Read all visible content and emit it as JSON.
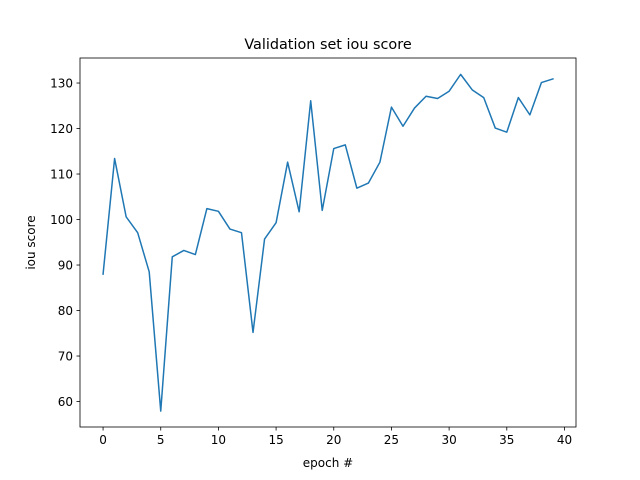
{
  "chart_data": {
    "type": "line",
    "title": "Validation set iou score",
    "xlabel": "epoch #",
    "ylabel": "iou score",
    "xlim": [
      -2,
      41
    ],
    "ylim": [
      54.4,
      135.5
    ],
    "xticks": [
      0,
      5,
      10,
      15,
      20,
      25,
      30,
      35,
      40
    ],
    "yticks": [
      60,
      70,
      80,
      90,
      100,
      110,
      120,
      130
    ],
    "grid": false,
    "line_color": "#1f77b4",
    "series": [
      {
        "x": [
          0,
          1,
          2,
          3,
          4,
          5,
          6,
          7,
          8,
          9,
          10,
          11,
          12,
          13,
          14,
          15,
          16,
          17,
          18,
          19,
          20,
          21,
          22,
          23,
          24,
          25,
          26,
          27,
          28,
          29,
          30,
          31,
          32,
          33,
          34,
          35,
          36,
          37,
          38,
          39
        ],
        "values": [
          88.0,
          113.4,
          100.6,
          97.1,
          88.5,
          57.9,
          91.8,
          93.2,
          92.3,
          102.4,
          101.8,
          97.9,
          97.1,
          75.2,
          95.7,
          99.3,
          112.6,
          101.7,
          126.1,
          102.0,
          115.6,
          116.4,
          106.9,
          108.0,
          112.6,
          124.7,
          120.5,
          124.5,
          127.1,
          126.6,
          128.2,
          131.9,
          128.5,
          126.8,
          120.1,
          119.2,
          126.8,
          123.0,
          130.1,
          130.9
        ]
      }
    ]
  }
}
